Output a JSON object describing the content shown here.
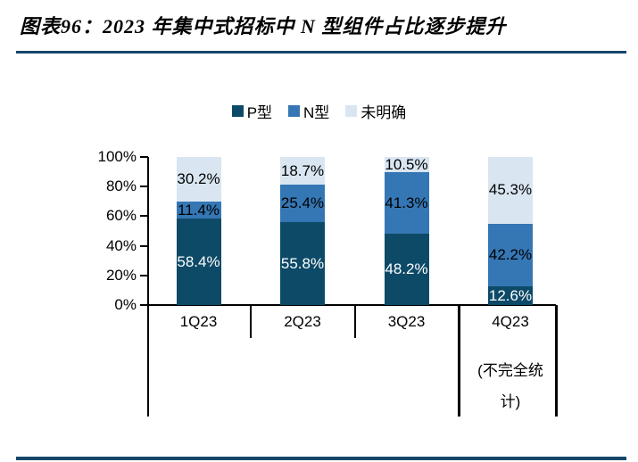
{
  "figure": {
    "title": "图表96：2023 年集中式招标中 N 型组件占比逐步提升"
  },
  "colors": {
    "accent_rule": "#17466b",
    "p_type": "#0d4a68",
    "n_type": "#3577b4",
    "unclear": "#d9e6f2",
    "axis": "#000000",
    "p_label_text": "#ffffff",
    "other_label_text": "#000000"
  },
  "chart_data": {
    "type": "bar",
    "stacked": true,
    "percent": true,
    "title": "",
    "xlabel": "",
    "ylabel": "",
    "ylim": [
      0,
      100
    ],
    "grid": false,
    "legend_position": "top",
    "yticks": [
      "100%",
      "80%",
      "60%",
      "40%",
      "20%",
      "0%"
    ],
    "categories": [
      {
        "label": "1Q23",
        "sublabel": ""
      },
      {
        "label": "2Q23",
        "sublabel": ""
      },
      {
        "label": "3Q23",
        "sublabel": ""
      },
      {
        "label": "4Q23",
        "sublabel": "(不完全统\n计)"
      }
    ],
    "series": [
      {
        "name": "P型",
        "color": "#0d4a68",
        "label_color": "#ffffff",
        "values": [
          58.4,
          55.8,
          48.2,
          12.6
        ]
      },
      {
        "name": "N型",
        "color": "#3577b4",
        "label_color": "#000000",
        "values": [
          11.4,
          25.4,
          41.3,
          42.2
        ]
      },
      {
        "name": "未明确",
        "color": "#d9e6f2",
        "label_color": "#000000",
        "values": [
          30.2,
          18.7,
          10.5,
          45.3
        ]
      }
    ],
    "value_suffix": "%"
  }
}
